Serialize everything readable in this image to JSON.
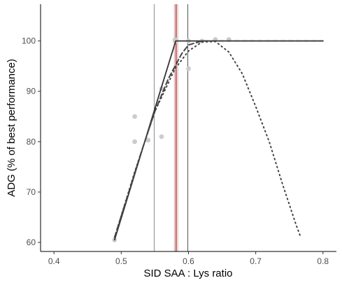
{
  "chart_data": {
    "type": "scatter",
    "xlabel": "SID SAA : Lys ratio",
    "ylabel": "ADG (% of best performance)",
    "xlim": [
      0.38,
      0.82
    ],
    "ylim": [
      58.2,
      107.3
    ],
    "xticks": [
      "0.4",
      "0.5",
      "0.6",
      "0.7",
      "0.8"
    ],
    "yticks": [
      "60",
      "70",
      "80",
      "90",
      "100"
    ],
    "grid": false,
    "points": [
      {
        "x": 0.49,
        "y": 60.5
      },
      {
        "x": 0.52,
        "y": 85.0
      },
      {
        "x": 0.52,
        "y": 80.0
      },
      {
        "x": 0.54,
        "y": 80.3
      },
      {
        "x": 0.56,
        "y": 81.0
      },
      {
        "x": 0.56,
        "y": 90.5
      },
      {
        "x": 0.58,
        "y": 100.0
      },
      {
        "x": 0.58,
        "y": 100.2
      },
      {
        "x": 0.6,
        "y": 94.5
      },
      {
        "x": 0.6,
        "y": 100.0
      },
      {
        "x": 0.62,
        "y": 100.0
      },
      {
        "x": 0.64,
        "y": 100.3
      },
      {
        "x": 0.66,
        "y": 100.3
      }
    ],
    "vertical_lines": [
      {
        "x": 0.549,
        "color": "#8a8a8a"
      },
      {
        "x": 0.579,
        "color": "#b3b3b3"
      },
      {
        "x": 0.5815,
        "color": "#d62728"
      },
      {
        "x": 0.584,
        "color": "#b3b3b3"
      },
      {
        "x": 0.599,
        "color": "#555555"
      }
    ],
    "series": [
      {
        "style": "solid",
        "color": "#333333",
        "x": [
          0.49,
          0.581,
          0.8
        ],
        "y": [
          60.5,
          100.0,
          100.0
        ]
      },
      {
        "style": "dashed",
        "color": "#444444",
        "x": [
          0.49,
          0.51,
          0.53,
          0.55,
          0.57,
          0.59,
          0.6,
          0.62,
          0.8
        ],
        "y": [
          61.0,
          69.5,
          78.0,
          86.0,
          92.5,
          97.5,
          99.2,
          100.0,
          100.0
        ]
      },
      {
        "style": "dotted",
        "color": "#444444",
        "x": [
          0.49,
          0.52,
          0.55,
          0.58,
          0.6,
          0.62,
          0.64,
          0.66,
          0.68,
          0.7,
          0.72,
          0.74,
          0.76,
          0.767
        ],
        "y": [
          61.0,
          74.0,
          86.0,
          94.5,
          98.0,
          99.8,
          99.9,
          97.8,
          93.5,
          87.0,
          80.0,
          71.5,
          63.5,
          61.0
        ]
      }
    ],
    "colors": {
      "points": "#cccccc",
      "axis": "#000000",
      "tick_text": "#4d4d4d",
      "optimum_line": "#d62728"
    }
  }
}
